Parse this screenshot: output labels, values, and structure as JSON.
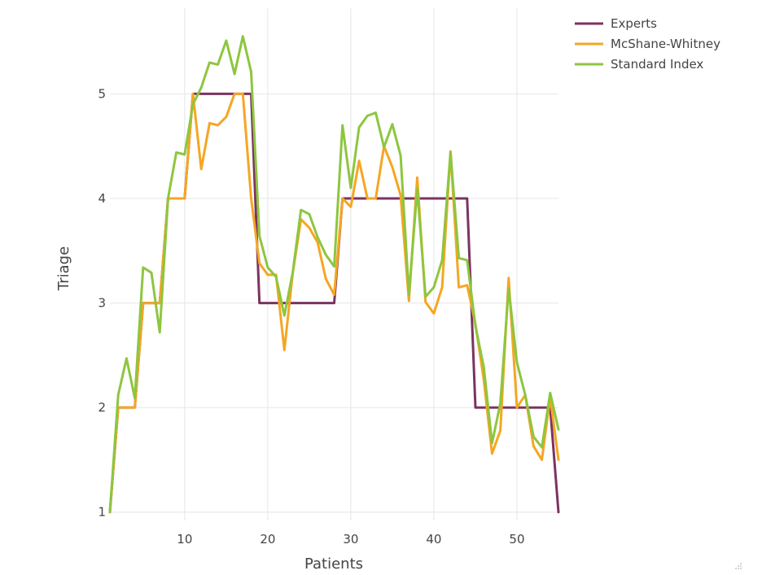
{
  "chart_data": {
    "type": "line",
    "title": "",
    "xlabel": "Patients",
    "ylabel": "Triage",
    "xlim": [
      1,
      55
    ],
    "ylim": [
      0.92,
      5.82
    ],
    "x_ticks": [
      10,
      20,
      30,
      40,
      50
    ],
    "y_ticks": [
      1,
      2,
      3,
      4,
      5
    ],
    "grid": true,
    "legend_position": "top-right",
    "x": [
      1,
      2,
      3,
      4,
      5,
      6,
      7,
      8,
      9,
      10,
      11,
      12,
      13,
      14,
      15,
      16,
      17,
      18,
      19,
      20,
      21,
      22,
      23,
      24,
      25,
      26,
      27,
      28,
      29,
      30,
      31,
      32,
      33,
      34,
      35,
      36,
      37,
      38,
      39,
      40,
      41,
      42,
      43,
      44,
      45,
      46,
      47,
      48,
      49,
      50,
      51,
      52,
      53,
      54,
      55
    ],
    "series": [
      {
        "name": "Experts",
        "color": "#7b3361",
        "values": [
          1,
          2,
          2,
          2,
          3,
          3,
          3,
          4,
          4,
          4,
          5,
          5,
          5,
          5,
          5,
          5,
          5,
          5,
          3,
          3,
          3,
          3,
          3,
          3,
          3,
          3,
          3,
          3,
          4,
          4,
          4,
          4,
          4,
          4,
          4,
          4,
          4,
          4,
          4,
          4,
          4,
          4,
          4,
          4,
          2,
          2,
          2,
          2,
          2,
          2,
          2,
          2,
          2,
          2,
          1
        ]
      },
      {
        "name": "McShane-Whitney",
        "color": "#f5a623",
        "values": [
          1,
          2,
          2,
          2,
          3,
          3,
          3,
          4,
          4,
          4,
          5,
          4.28,
          4.72,
          4.7,
          4.78,
          5,
          5,
          4,
          3.38,
          3.27,
          3.27,
          2.55,
          3.28,
          3.8,
          3.72,
          3.58,
          3.23,
          3.08,
          4,
          3.92,
          4.36,
          4,
          4,
          4.5,
          4.3,
          4.03,
          3.02,
          4.2,
          3.01,
          2.9,
          3.15,
          4.45,
          3.15,
          3.17,
          2.8,
          2.27,
          1.56,
          1.78,
          3.24,
          2,
          2.12,
          1.63,
          1.5,
          2.1,
          1.5
        ]
      },
      {
        "name": "Standard Index",
        "color": "#8dc63f",
        "values": [
          1,
          2.12,
          2.47,
          2.09,
          3.34,
          3.29,
          2.72,
          4,
          4.44,
          4.42,
          4.9,
          5.06,
          5.3,
          5.28,
          5.51,
          5.19,
          5.55,
          5.21,
          3.64,
          3.34,
          3.25,
          2.88,
          3.29,
          3.89,
          3.85,
          3.63,
          3.46,
          3.35,
          4.7,
          4.1,
          4.68,
          4.79,
          4.82,
          4.49,
          4.71,
          4.41,
          3.08,
          4.09,
          3.06,
          3.15,
          3.41,
          4.44,
          3.43,
          3.41,
          2.78,
          2.39,
          1.66,
          2.04,
          3.14,
          2.43,
          2.12,
          1.72,
          1.62,
          2.14,
          1.79
        ]
      }
    ]
  }
}
